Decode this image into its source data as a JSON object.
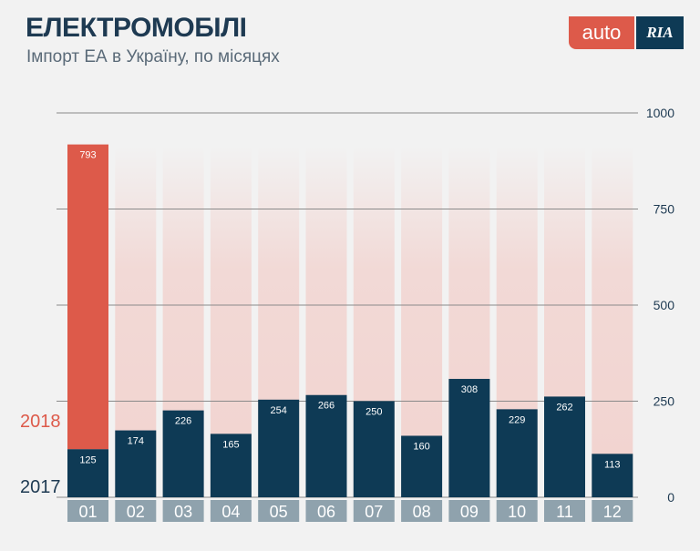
{
  "header": {
    "title": "ЕЛЕКТРОМОБІЛІ",
    "subtitle": "Імпорт ЕА в Україну, по місяцях"
  },
  "logo": {
    "part1": "auto",
    "part2": "RIA"
  },
  "chart_data": {
    "type": "bar",
    "stacked": true,
    "categories": [
      "01",
      "02",
      "03",
      "04",
      "05",
      "06",
      "07",
      "08",
      "09",
      "10",
      "11",
      "12"
    ],
    "series": [
      {
        "name": "2017",
        "color": "#0e3a55",
        "values": [
          125,
          174,
          226,
          165,
          254,
          266,
          250,
          160,
          308,
          229,
          262,
          113
        ]
      },
      {
        "name": "2018",
        "color": "#dd5a4a",
        "values": [
          793,
          null,
          null,
          null,
          null,
          null,
          null,
          null,
          null,
          null,
          null,
          null
        ]
      }
    ],
    "ylim": [
      0,
      1000
    ],
    "yticks": [
      0,
      250,
      500,
      750,
      1000
    ],
    "y_axis_side": "right",
    "grid": true,
    "legend": "left"
  }
}
